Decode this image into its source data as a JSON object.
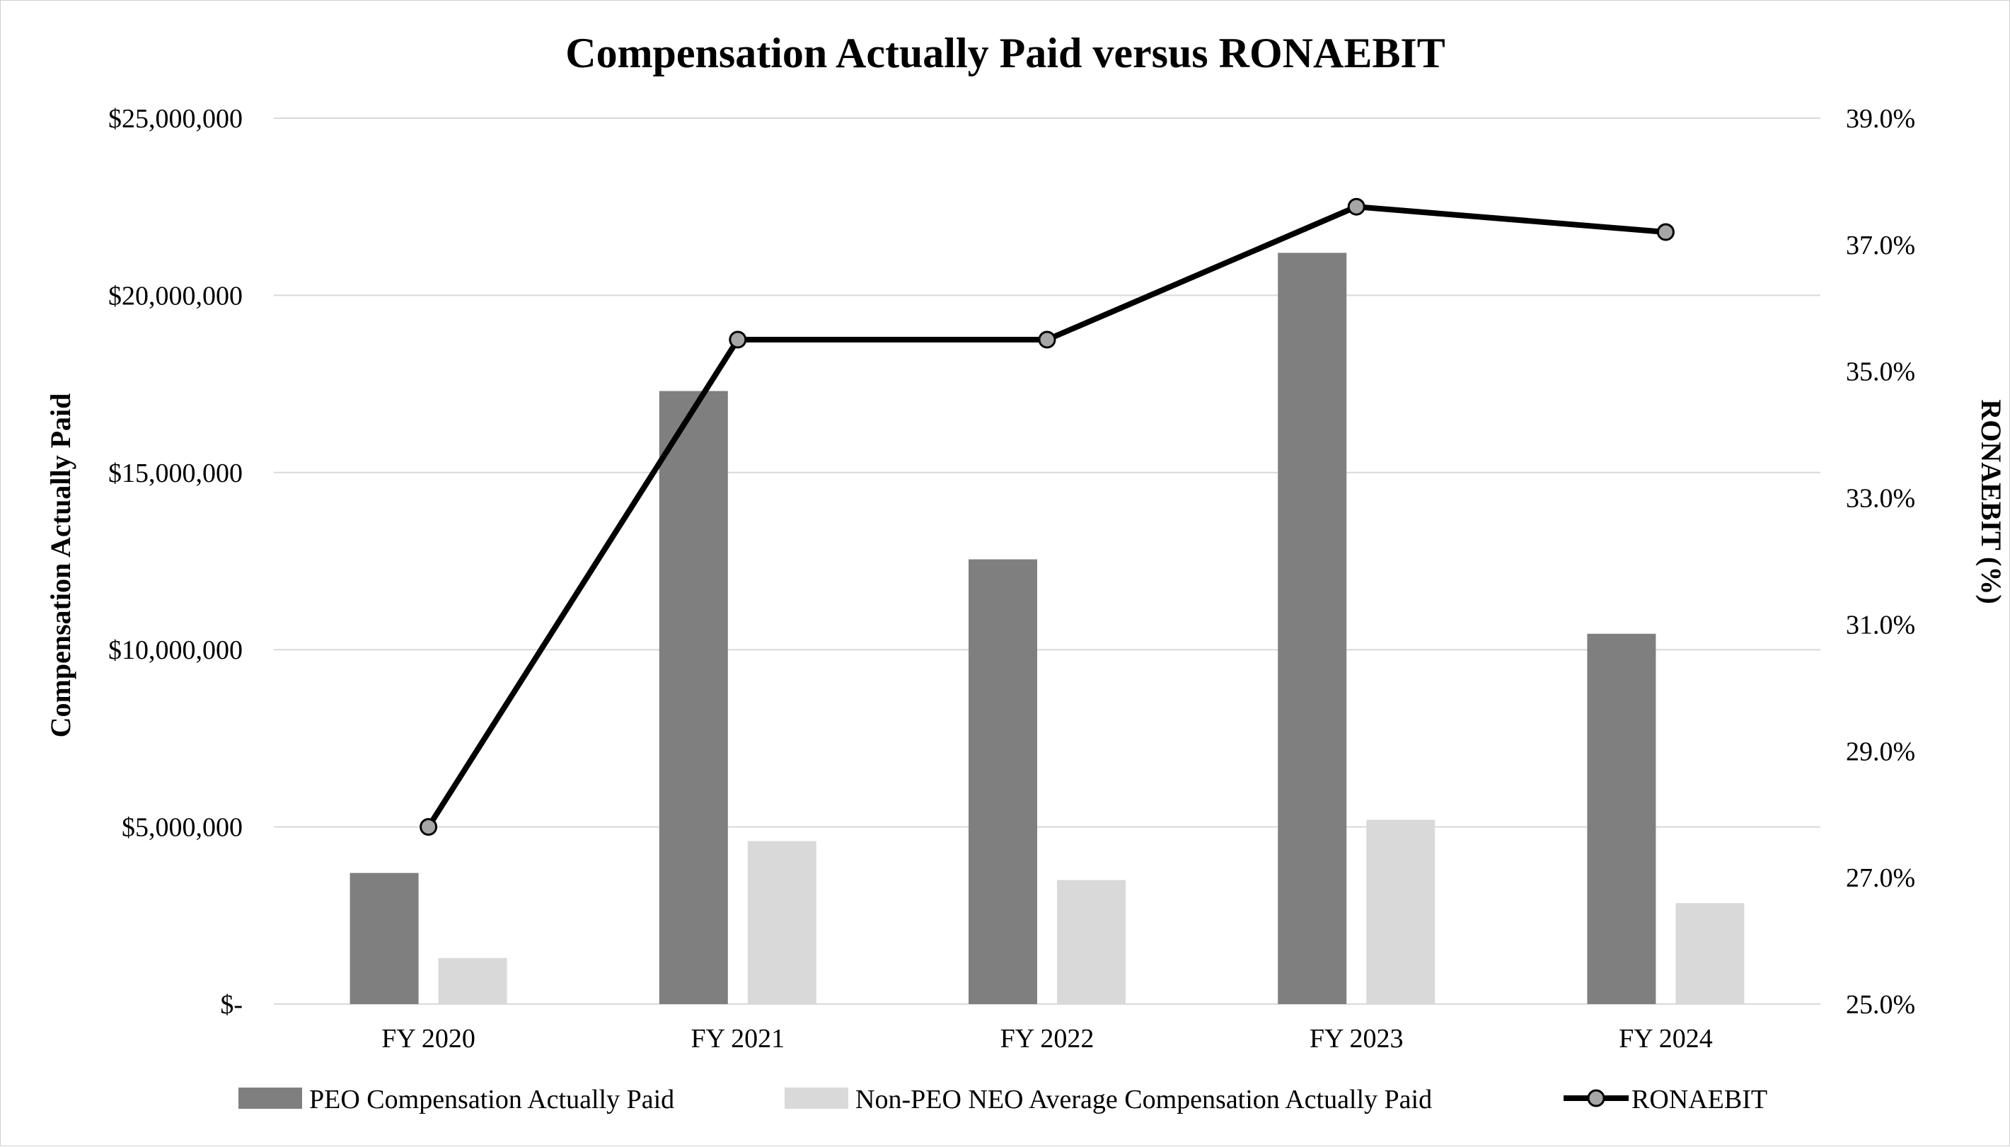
{
  "chart_data": {
    "type": "bar",
    "title": "Compensation Actually Paid versus RONAEBIT",
    "categories": [
      "FY 2020",
      "FY 2021",
      "FY 2022",
      "FY 2023",
      "FY 2024"
    ],
    "series": [
      {
        "name": "PEO Compensation Actually Paid",
        "type": "bar",
        "axis": "left",
        "color": "#7f7f7f",
        "values": [
          3700000,
          17300000,
          12550000,
          21200000,
          10450000
        ]
      },
      {
        "name": "Non-PEO NEO Average Compensation Actually Paid",
        "type": "bar",
        "axis": "left",
        "color": "#d9d9d9",
        "values": [
          1300000,
          4600000,
          3500000,
          5200000,
          2850000
        ]
      },
      {
        "name": "RONAEBIT",
        "type": "line",
        "axis": "right",
        "color": "#000000",
        "marker_color": "#a6a6a6",
        "values": [
          27.8,
          35.5,
          35.5,
          37.6,
          37.2
        ]
      }
    ],
    "ylabel": "Compensation Actually Paid",
    "y2label": "RONAEBIT (%)",
    "ylim": [
      0,
      25000000
    ],
    "y2lim": [
      25,
      39
    ],
    "yticks": [
      {
        "value": 0,
        "label": "$-"
      },
      {
        "value": 5000000,
        "label": "$5,000,000"
      },
      {
        "value": 10000000,
        "label": "$10,000,000"
      },
      {
        "value": 15000000,
        "label": "$15,000,000"
      },
      {
        "value": 20000000,
        "label": "$20,000,000"
      },
      {
        "value": 25000000,
        "label": "$25,000,000"
      }
    ],
    "y2ticks": [
      {
        "value": 25,
        "label": "25.0%"
      },
      {
        "value": 27,
        "label": "27.0%"
      },
      {
        "value": 29,
        "label": "29.0%"
      },
      {
        "value": 31,
        "label": "31.0%"
      },
      {
        "value": 33,
        "label": "33.0%"
      },
      {
        "value": 35,
        "label": "35.0%"
      },
      {
        "value": 37,
        "label": "37.0%"
      },
      {
        "value": 39,
        "label": "39.0%"
      }
    ],
    "grid": true,
    "legend_position": "bottom"
  }
}
